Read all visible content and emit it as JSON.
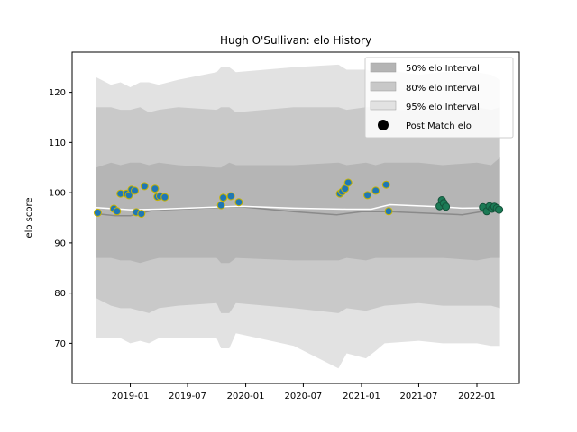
{
  "chart_data": {
    "type": "line",
    "title": "Hugh O'Sullivan: elo History",
    "xlabel": "",
    "ylabel": "elo score",
    "x_range": [
      "2018-07-01",
      "2022-05-15"
    ],
    "ylim": [
      62,
      128
    ],
    "x_ticks": [
      {
        "date": "2019-01-01",
        "label": "2019-01"
      },
      {
        "date": "2019-07-01",
        "label": "2019-07"
      },
      {
        "date": "2020-01-01",
        "label": "2020-01"
      },
      {
        "date": "2020-07-01",
        "label": "2020-07"
      },
      {
        "date": "2021-01-01",
        "label": "2021-01"
      },
      {
        "date": "2021-07-01",
        "label": "2021-07"
      },
      {
        "date": "2022-01-01",
        "label": "2022-01"
      }
    ],
    "y_ticks": [
      70,
      80,
      90,
      100,
      110,
      120
    ],
    "grid": false,
    "legend_position": "top-right",
    "legend": [
      {
        "label": "50% elo Interval",
        "kind": "band",
        "color": "#b4b4b4"
      },
      {
        "label": "80% elo Interval",
        "kind": "band",
        "color": "#c8c8c8"
      },
      {
        "label": "95% elo Interval",
        "kind": "band",
        "color": "#e2e2e2"
      },
      {
        "label": "Post Match elo",
        "kind": "marker",
        "color": "#000000"
      }
    ],
    "colors": {
      "band_95": "#e2e2e2",
      "band_80": "#c9c9c9",
      "band_50": "#b5b5b5",
      "median_line": "#8a8a8a",
      "mean_line": "#ffffff",
      "point_fill_a": "#1f77b4",
      "point_edge_a": "#c8b400",
      "point_fill_b": "#1b7a55",
      "point_edge_b": "#14523a"
    },
    "bands": [
      {
        "date": "2018-09-15",
        "lo95": 71,
        "lo80": 79,
        "lo50": 87,
        "hi50": 105,
        "hi80": 117,
        "hi95": 123
      },
      {
        "date": "2018-11-01",
        "lo95": 71,
        "lo80": 77.5,
        "lo50": 87,
        "hi50": 106,
        "hi80": 117,
        "hi95": 121.5
      },
      {
        "date": "2018-12-01",
        "lo95": 71,
        "lo80": 77,
        "lo50": 86.5,
        "hi50": 105.5,
        "hi80": 116.5,
        "hi95": 122
      },
      {
        "date": "2019-01-01",
        "lo95": 70,
        "lo80": 77,
        "lo50": 86.5,
        "hi50": 106,
        "hi80": 116.5,
        "hi95": 121
      },
      {
        "date": "2019-02-01",
        "lo95": 70.5,
        "lo80": 76.5,
        "lo50": 86,
        "hi50": 106,
        "hi80": 117,
        "hi95": 122
      },
      {
        "date": "2019-03-01",
        "lo95": 70,
        "lo80": 76,
        "lo50": 86.5,
        "hi50": 105.5,
        "hi80": 116,
        "hi95": 122
      },
      {
        "date": "2019-04-01",
        "lo95": 71,
        "lo80": 77,
        "lo50": 87,
        "hi50": 106,
        "hi80": 116.5,
        "hi95": 121.5
      },
      {
        "date": "2019-06-01",
        "lo95": 71,
        "lo80": 77.5,
        "lo50": 87,
        "hi50": 105.5,
        "hi80": 117,
        "hi95": 122.5
      },
      {
        "date": "2019-10-01",
        "lo95": 71,
        "lo80": 78,
        "lo50": 87,
        "hi50": 105,
        "hi80": 116.5,
        "hi95": 124
      },
      {
        "date": "2019-10-15",
        "lo95": 69,
        "lo80": 76,
        "lo50": 86,
        "hi50": 105,
        "hi80": 117,
        "hi95": 125
      },
      {
        "date": "2019-11-10",
        "lo95": 69,
        "lo80": 76,
        "lo50": 86,
        "hi50": 106,
        "hi80": 117,
        "hi95": 125
      },
      {
        "date": "2019-12-01",
        "lo95": 72,
        "lo80": 78,
        "lo50": 87,
        "hi50": 105.5,
        "hi80": 116,
        "hi95": 124
      },
      {
        "date": "2020-06-01",
        "lo95": 69.5,
        "lo80": 77,
        "lo50": 86.5,
        "hi50": 105.5,
        "hi80": 117,
        "hi95": 125
      },
      {
        "date": "2020-10-20",
        "lo95": 65,
        "lo80": 76,
        "lo50": 86.5,
        "hi50": 106,
        "hi80": 117,
        "hi95": 125.5
      },
      {
        "date": "2020-11-15",
        "lo95": 68,
        "lo80": 77,
        "lo50": 87,
        "hi50": 105.5,
        "hi80": 116.5,
        "hi95": 124.5
      },
      {
        "date": "2021-01-15",
        "lo95": 67,
        "lo80": 76.5,
        "lo50": 86.5,
        "hi50": 106,
        "hi80": 117,
        "hi95": 124.5
      },
      {
        "date": "2021-02-15",
        "lo95": 68.5,
        "lo80": 77,
        "lo50": 87,
        "hi50": 105.5,
        "hi80": 117,
        "hi95": 124
      },
      {
        "date": "2021-03-15",
        "lo95": 70,
        "lo80": 77.5,
        "lo50": 87,
        "hi50": 106,
        "hi80": 116.5,
        "hi95": 124.5
      },
      {
        "date": "2021-07-01",
        "lo95": 70.5,
        "lo80": 78,
        "lo50": 87,
        "hi50": 106,
        "hi80": 116.5,
        "hi95": 123.5
      },
      {
        "date": "2021-09-15",
        "lo95": 70,
        "lo80": 77.5,
        "lo50": 87,
        "hi50": 105.5,
        "hi80": 116.5,
        "hi95": 124
      },
      {
        "date": "2022-01-01",
        "lo95": 70,
        "lo80": 77.5,
        "lo50": 86.5,
        "hi50": 106,
        "hi80": 117,
        "hi95": 124
      },
      {
        "date": "2022-02-15",
        "lo95": 69.5,
        "lo80": 77.5,
        "lo50": 87,
        "hi50": 105.5,
        "hi80": 116.5,
        "hi95": 123.5
      },
      {
        "date": "2022-03-15",
        "lo95": 69.5,
        "lo80": 77,
        "lo50": 87,
        "hi50": 107,
        "hi80": 117,
        "hi95": 122.5
      }
    ],
    "median_line": [
      {
        "date": "2018-09-15",
        "y": 95.8
      },
      {
        "date": "2018-11-15",
        "y": 95.4
      },
      {
        "date": "2019-01-01",
        "y": 95.4
      },
      {
        "date": "2019-03-15",
        "y": 96.5
      },
      {
        "date": "2019-12-15",
        "y": 97.2
      },
      {
        "date": "2020-06-01",
        "y": 96.2
      },
      {
        "date": "2020-10-15",
        "y": 95.6
      },
      {
        "date": "2021-01-01",
        "y": 96.2
      },
      {
        "date": "2021-04-01",
        "y": 96.2
      },
      {
        "date": "2021-09-01",
        "y": 95.8
      },
      {
        "date": "2021-11-15",
        "y": 95.6
      },
      {
        "date": "2022-01-15",
        "y": 96.2
      },
      {
        "date": "2022-03-15",
        "y": 96.6
      }
    ],
    "mean_line": [
      {
        "date": "2018-09-15",
        "y": 97.0
      },
      {
        "date": "2019-01-01",
        "y": 96.6
      },
      {
        "date": "2019-04-01",
        "y": 96.7
      },
      {
        "date": "2019-12-15",
        "y": 97.3
      },
      {
        "date": "2020-06-01",
        "y": 96.9
      },
      {
        "date": "2020-11-15",
        "y": 96.7
      },
      {
        "date": "2021-02-01",
        "y": 96.7
      },
      {
        "date": "2021-04-01",
        "y": 97.6
      },
      {
        "date": "2021-09-01",
        "y": 97.2
      },
      {
        "date": "2021-11-15",
        "y": 96.9
      },
      {
        "date": "2022-03-15",
        "y": 97.0
      }
    ],
    "points": [
      {
        "date": "2018-09-20",
        "y": 96.0,
        "group": "a"
      },
      {
        "date": "2018-11-10",
        "y": 96.8,
        "group": "a"
      },
      {
        "date": "2018-11-20",
        "y": 96.3,
        "group": "a"
      },
      {
        "date": "2018-12-01",
        "y": 99.8,
        "group": "a"
      },
      {
        "date": "2018-12-20",
        "y": 99.8,
        "group": "a"
      },
      {
        "date": "2018-12-28",
        "y": 99.5,
        "group": "a"
      },
      {
        "date": "2019-01-05",
        "y": 100.6,
        "group": "a"
      },
      {
        "date": "2019-01-15",
        "y": 100.4,
        "group": "a"
      },
      {
        "date": "2019-01-20",
        "y": 96.1,
        "group": "a"
      },
      {
        "date": "2019-02-05",
        "y": 95.8,
        "group": "a"
      },
      {
        "date": "2019-02-15",
        "y": 101.3,
        "group": "a"
      },
      {
        "date": "2019-03-20",
        "y": 100.8,
        "group": "a"
      },
      {
        "date": "2019-03-28",
        "y": 99.2,
        "group": "a"
      },
      {
        "date": "2019-04-05",
        "y": 99.3,
        "group": "a"
      },
      {
        "date": "2019-04-20",
        "y": 99.1,
        "group": "a"
      },
      {
        "date": "2019-10-15",
        "y": 97.5,
        "group": "a"
      },
      {
        "date": "2019-10-22",
        "y": 99.0,
        "group": "a"
      },
      {
        "date": "2019-11-15",
        "y": 99.3,
        "group": "a"
      },
      {
        "date": "2019-12-10",
        "y": 98.1,
        "group": "a"
      },
      {
        "date": "2020-10-25",
        "y": 99.8,
        "group": "a"
      },
      {
        "date": "2020-11-01",
        "y": 100.2,
        "group": "a"
      },
      {
        "date": "2020-11-10",
        "y": 100.8,
        "group": "a"
      },
      {
        "date": "2020-11-20",
        "y": 102.0,
        "group": "a"
      },
      {
        "date": "2021-01-20",
        "y": 99.5,
        "group": "a"
      },
      {
        "date": "2021-02-15",
        "y": 100.4,
        "group": "a"
      },
      {
        "date": "2021-03-20",
        "y": 101.6,
        "group": "a"
      },
      {
        "date": "2021-03-28",
        "y": 96.3,
        "group": "a"
      },
      {
        "date": "2021-09-05",
        "y": 97.3,
        "group": "b"
      },
      {
        "date": "2021-09-12",
        "y": 98.5,
        "group": "b"
      },
      {
        "date": "2021-09-18",
        "y": 97.9,
        "group": "b"
      },
      {
        "date": "2021-09-25",
        "y": 97.2,
        "group": "b"
      },
      {
        "date": "2022-01-20",
        "y": 97.1,
        "group": "b"
      },
      {
        "date": "2022-02-01",
        "y": 96.3,
        "group": "b"
      },
      {
        "date": "2022-02-10",
        "y": 97.3,
        "group": "b"
      },
      {
        "date": "2022-02-18",
        "y": 96.8,
        "group": "b"
      },
      {
        "date": "2022-02-25",
        "y": 97.2,
        "group": "b"
      },
      {
        "date": "2022-03-05",
        "y": 96.9,
        "group": "b"
      },
      {
        "date": "2022-03-12",
        "y": 96.6,
        "group": "b"
      }
    ]
  }
}
